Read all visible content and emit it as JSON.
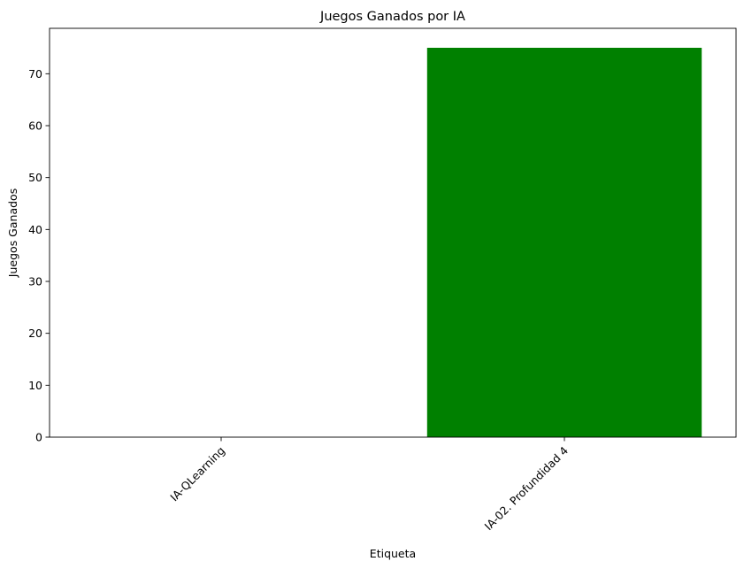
{
  "chart_data": {
    "type": "bar",
    "title": "Juegos Ganados por IA",
    "xlabel": "Etiqueta",
    "ylabel": "Juegos Ganados",
    "categories": [
      "IA-QLearning",
      "IA-02. Profundidad 4"
    ],
    "values": [
      0,
      75
    ],
    "bar_colors": [
      "#008000",
      "#008000"
    ],
    "ylim": [
      0,
      78.75
    ],
    "yticks": [
      0,
      10,
      20,
      30,
      40,
      50,
      60,
      70
    ],
    "xtick_rotation_deg": 45,
    "grid": false,
    "legend": null
  }
}
